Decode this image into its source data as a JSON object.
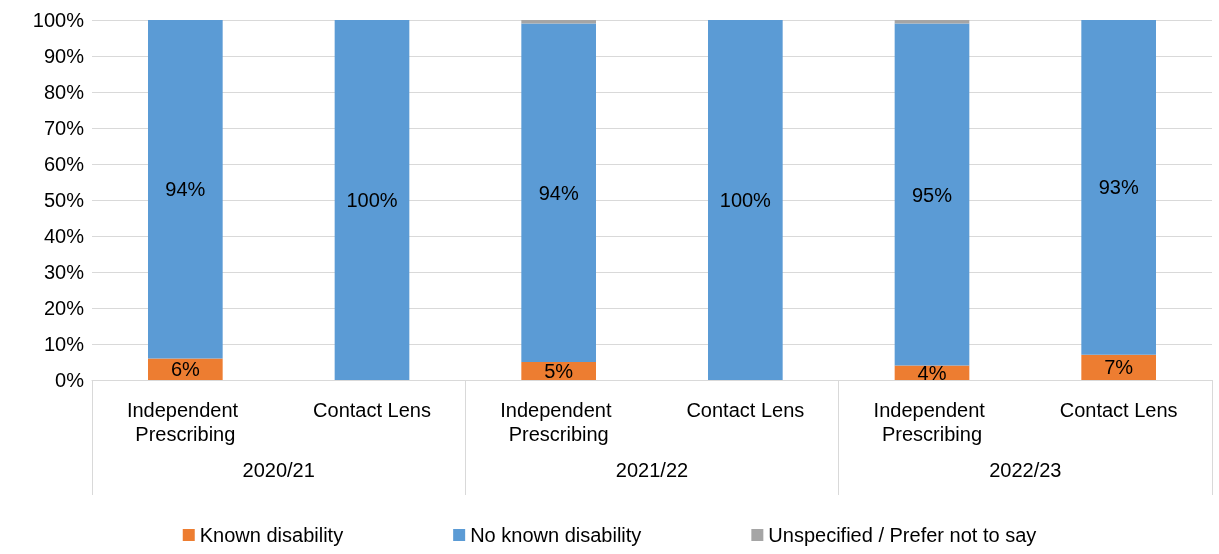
{
  "chart_data": {
    "type": "bar",
    "stacked": true,
    "categories": [
      "Independent Prescribing",
      "Contact Lens",
      "Independent Prescribing",
      "Contact Lens",
      "Independent Prescribing",
      "Contact Lens"
    ],
    "annotations": [
      "2020/21",
      "2021/22",
      "2022/23"
    ],
    "series": [
      {
        "name": "Known disability",
        "color": "#ed7d31",
        "values": [
          6,
          0,
          5,
          0,
          4,
          7
        ],
        "value_labels": [
          "6%",
          null,
          "5%",
          null,
          "4%",
          "7%"
        ]
      },
      {
        "name": "No known disability",
        "color": "#5b9bd5",
        "values": [
          94,
          100,
          94,
          100,
          95,
          93
        ],
        "value_labels": [
          "94%",
          "100%",
          "94%",
          "100%",
          "95%",
          "93%"
        ]
      },
      {
        "name": "Unspecified / Prefer not to say",
        "color": "#a5a5a5",
        "values": [
          0,
          0,
          1,
          0,
          1,
          0
        ],
        "value_labels": [
          null,
          null,
          null,
          null,
          null,
          null
        ]
      }
    ],
    "ylim": [
      0,
      100
    ],
    "yticks": [
      {
        "value": 0,
        "label": "0%"
      },
      {
        "value": 10,
        "label": "10%"
      },
      {
        "value": 20,
        "label": "20%"
      },
      {
        "value": 30,
        "label": "30%"
      },
      {
        "value": 40,
        "label": "40%"
      },
      {
        "value": 50,
        "label": "50%"
      },
      {
        "value": 60,
        "label": "60%"
      },
      {
        "value": 70,
        "label": "70%"
      },
      {
        "value": 80,
        "label": "80%"
      },
      {
        "value": 90,
        "label": "90%"
      },
      {
        "value": 100,
        "label": "100%"
      }
    ],
    "grid": "y",
    "legend": "bottom"
  }
}
